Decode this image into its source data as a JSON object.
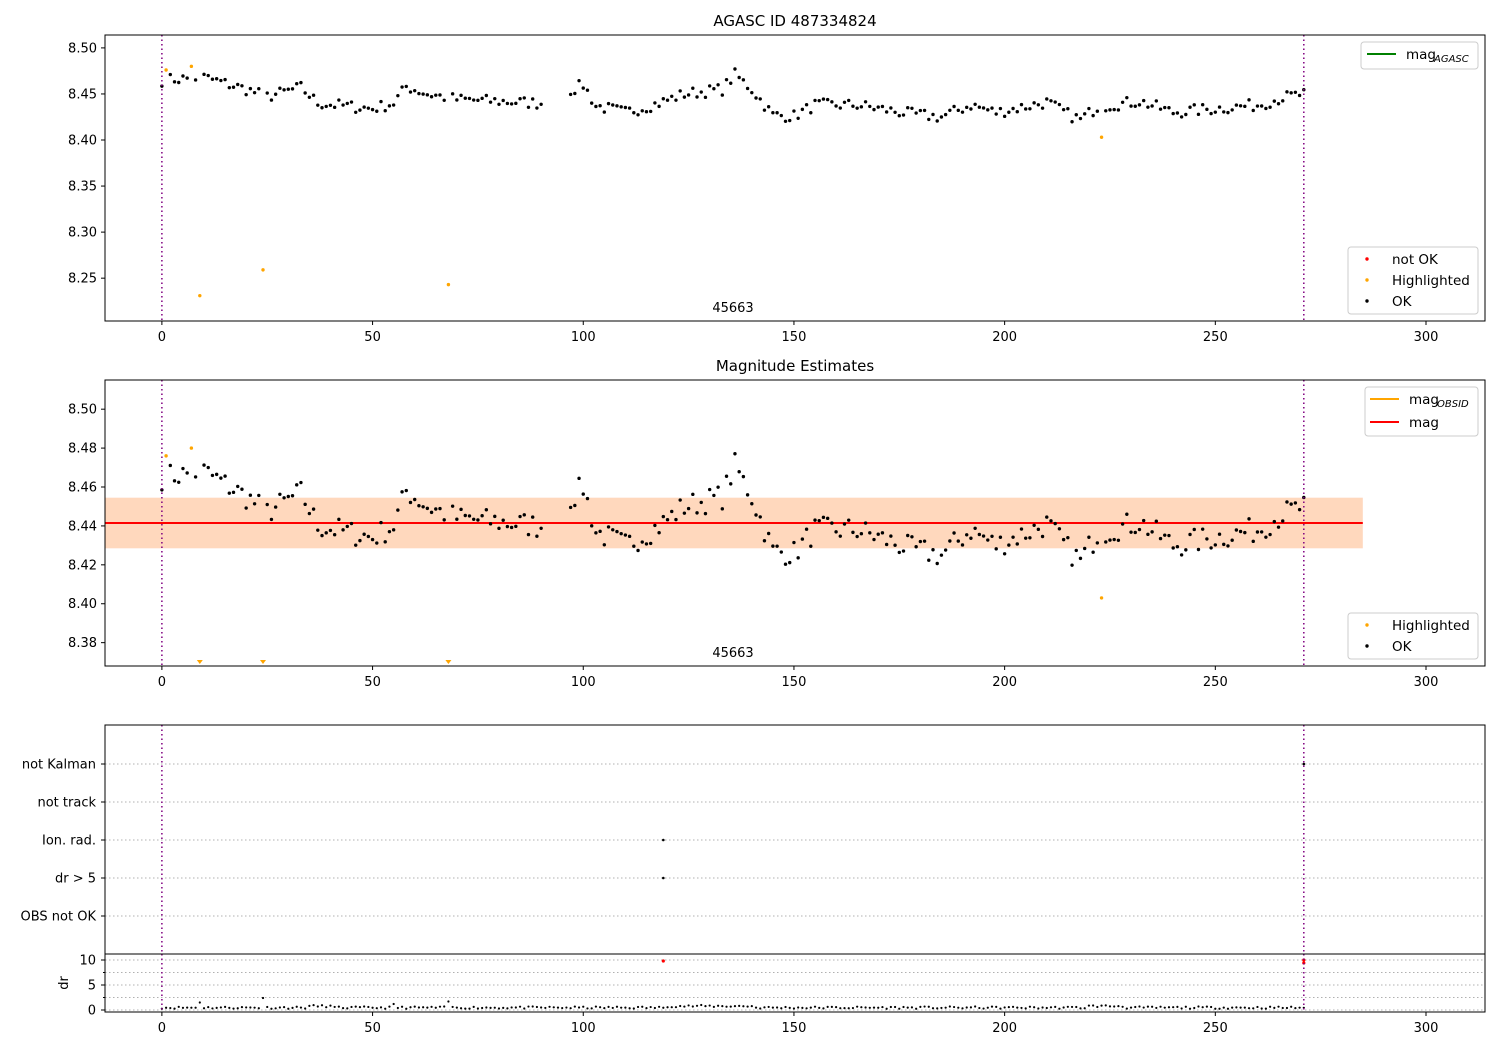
{
  "chart_data": [
    {
      "type": "scatter",
      "title": "AGASC ID 487334824",
      "annotation": "45663",
      "xlim": [
        -13.5,
        314
      ],
      "ylim": [
        8.2035,
        8.514
      ],
      "x_ticks": [
        0,
        50,
        100,
        150,
        200,
        250,
        300
      ],
      "y_ticks": [
        8.25,
        8.3,
        8.35,
        8.4,
        8.45,
        8.5
      ],
      "y_tick_labels": [
        "8.25",
        "8.30",
        "8.35",
        "8.40",
        "8.45",
        "8.50"
      ],
      "vlines": [
        0,
        271
      ],
      "legend_lines": [
        {
          "label": "mag",
          "sub": "AGASC",
          "color": "#008000"
        }
      ],
      "legend_points": [
        {
          "label": "not OK",
          "color": "#ff0000"
        },
        {
          "label": "Highlighted",
          "color": "#ffa500"
        },
        {
          "label": "OK",
          "color": "#000000"
        }
      ],
      "highlighted": [
        [
          1,
          8.476
        ],
        [
          7,
          8.48
        ],
        [
          9,
          8.231
        ],
        [
          24,
          8.259
        ],
        [
          68,
          8.243
        ],
        [
          223,
          8.403
        ]
      ]
    },
    {
      "type": "scatter",
      "title": "Magnitude Estimates",
      "annotation": "45663",
      "xlim": [
        -13.5,
        314
      ],
      "ylim": [
        8.368,
        8.515
      ],
      "x_ticks": [
        0,
        50,
        100,
        150,
        200,
        250,
        300
      ],
      "y_ticks": [
        8.38,
        8.4,
        8.42,
        8.44,
        8.46,
        8.48,
        8.5
      ],
      "y_tick_labels": [
        "8.38",
        "8.40",
        "8.42",
        "8.44",
        "8.46",
        "8.48",
        "8.50"
      ],
      "vlines": [
        0,
        271
      ],
      "mag": 8.4415,
      "band": [
        8.4285,
        8.4545
      ],
      "band_x": [
        -13.5,
        285
      ],
      "legend_lines": [
        {
          "label": "mag",
          "sub": "OBSID",
          "color": "#ffa500"
        },
        {
          "label": "mag",
          "sub": "",
          "color": "#ff0000"
        }
      ],
      "legend_points": [
        {
          "label": "Highlighted",
          "color": "#ffa500"
        },
        {
          "label": "OK",
          "color": "#000000"
        }
      ],
      "highlighted": [
        [
          1,
          8.476
        ],
        [
          7,
          8.48
        ],
        [
          223,
          8.403
        ]
      ],
      "below_range_markers": [
        9,
        24,
        68
      ]
    },
    {
      "type": "scatter",
      "xlim": [
        -13.5,
        314
      ],
      "flag_labels": [
        "not Kalman",
        "not track",
        "Ion. rad.",
        "dr > 5",
        "OBS not OK"
      ],
      "flag_points": [
        {
          "x": 271,
          "flag": "not Kalman"
        },
        {
          "x": 119,
          "flag": "Ion. rad."
        },
        {
          "x": 119,
          "flag": "dr > 5"
        }
      ]
    },
    {
      "type": "scatter",
      "ylabel": "dr",
      "xlim": [
        -13.5,
        314
      ],
      "ylim": [
        -0.4,
        11.2
      ],
      "x_ticks": [
        0,
        50,
        100,
        150,
        200,
        250,
        300
      ],
      "y_ticks": [
        0,
        5,
        10
      ],
      "y_tick_labels": [
        "0",
        "5",
        "10"
      ],
      "vlines": [
        0,
        271
      ],
      "red_points": [
        [
          119,
          9.8
        ],
        [
          271,
          10.0
        ],
        [
          271,
          9.4
        ]
      ]
    }
  ],
  "colors": {
    "ok": "#000000",
    "highlighted": "#ffa500",
    "not_ok": "#ff0000",
    "agasc_line": "#008000",
    "obsid_line": "#ffa500",
    "mag_line": "#ff0000",
    "band_fill": "#ffb6c1",
    "vline": "#800080"
  }
}
